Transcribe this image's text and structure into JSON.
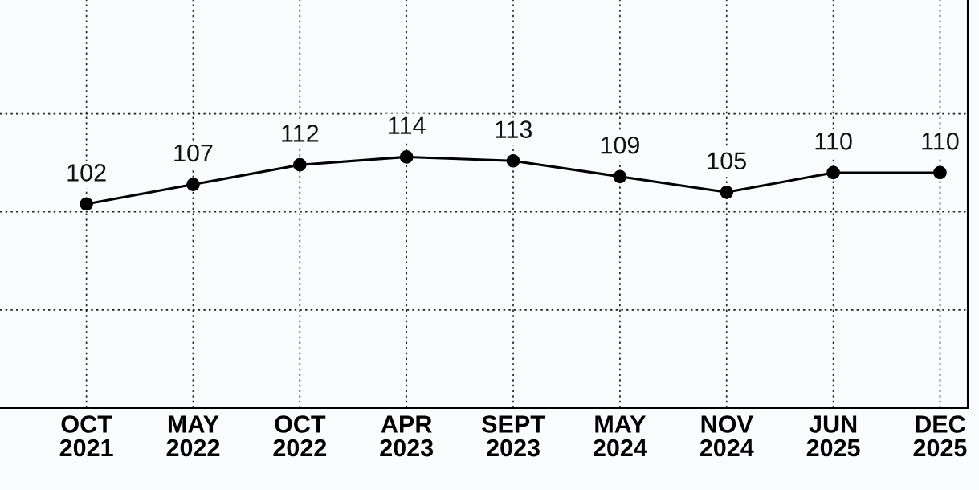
{
  "chart_data": {
    "type": "line",
    "categories": [
      "OCT\n2021",
      "MAY\n2022",
      "OCT\n2022",
      "APR\n2023",
      "SEPT\n2023",
      "MAY\n2024",
      "NOV\n2024",
      "JUN\n2025",
      "DEC\n2025"
    ],
    "series": [
      {
        "color": "#000000",
        "values": [
          102,
          107,
          112,
          114,
          113,
          109,
          105,
          110,
          110
        ]
      }
    ],
    "ylim": [
      50,
      154
    ],
    "yticks": [
      {
        "value": 75,
        "label": null
      },
      {
        "value": 100,
        "label": null
      },
      {
        "value": 125,
        "label": null
      }
    ],
    "tick_labels": "x",
    "grid": true,
    "marker": "circle",
    "line_style": "solid",
    "data_labels": true
  }
}
